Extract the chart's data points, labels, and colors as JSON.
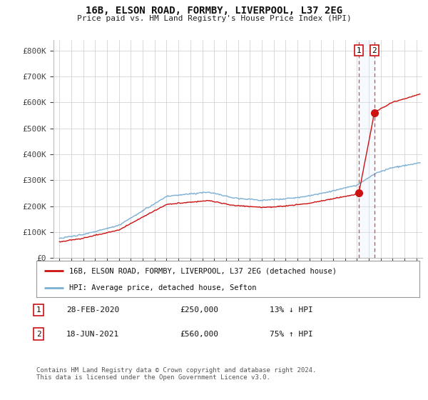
{
  "title": "16B, ELSON ROAD, FORMBY, LIVERPOOL, L37 2EG",
  "subtitle": "Price paid vs. HM Land Registry's House Price Index (HPI)",
  "ylabel_ticks": [
    "£0",
    "£100K",
    "£200K",
    "£300K",
    "£400K",
    "£500K",
    "£600K",
    "£700K",
    "£800K"
  ],
  "ytick_values": [
    0,
    100000,
    200000,
    300000,
    400000,
    500000,
    600000,
    700000,
    800000
  ],
  "ylim": [
    0,
    840000
  ],
  "xlim_start": 1994.5,
  "xlim_end": 2025.5,
  "hpi_color": "#7bafd4",
  "property_color": "#cc1111",
  "vline_color": "#dd4444",
  "shade_color": "#ddeeff",
  "marker1_date": 2020.16,
  "marker2_date": 2021.46,
  "marker1_price": 250000,
  "marker2_price": 560000,
  "legend_property": "16B, ELSON ROAD, FORMBY, LIVERPOOL, L37 2EG (detached house)",
  "legend_hpi": "HPI: Average price, detached house, Sefton",
  "table_row1": [
    "1",
    "28-FEB-2020",
    "£250,000",
    "13% ↓ HPI"
  ],
  "table_row2": [
    "2",
    "18-JUN-2021",
    "£560,000",
    "75% ↑ HPI"
  ],
  "footnote": "Contains HM Land Registry data © Crown copyright and database right 2024.\nThis data is licensed under the Open Government Licence v3.0.",
  "background_color": "#ffffff",
  "grid_color": "#cccccc"
}
